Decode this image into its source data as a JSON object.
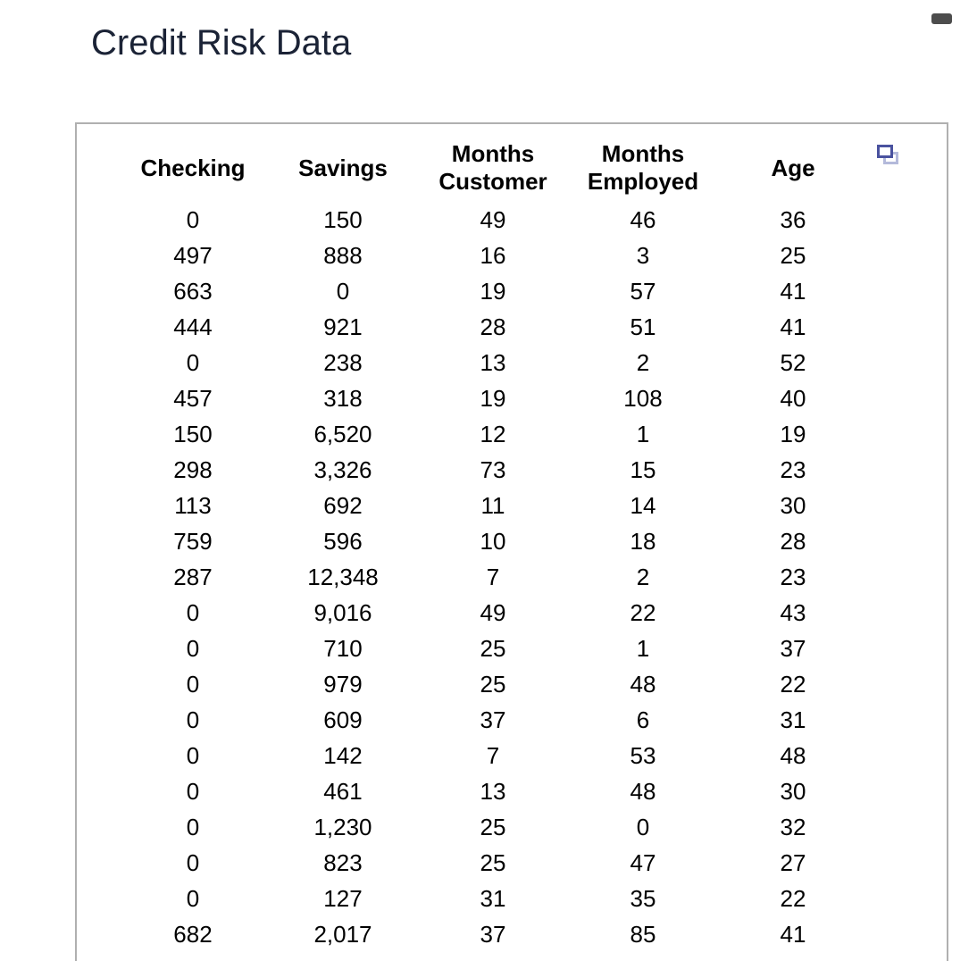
{
  "page": {
    "title": "Credit Risk Data"
  },
  "colors": {
    "title_color": "#1b2336",
    "text_color": "#000000",
    "border_color": "#b0b0b0",
    "bar_color": "#4d4d4d",
    "icon_dark": "#4a529f",
    "icon_light": "#b4badb"
  },
  "icons": {
    "popout": "duplicate-window-icon",
    "top_right": "dark-bar-icon"
  },
  "table": {
    "headers": [
      "Checking",
      "Savings",
      "Months\nCustomer",
      "Months\nEmployed",
      "Age"
    ],
    "rows": [
      [
        "0",
        "150",
        "49",
        "46",
        "36"
      ],
      [
        "497",
        "888",
        "16",
        "3",
        "25"
      ],
      [
        "663",
        "0",
        "19",
        "57",
        "41"
      ],
      [
        "444",
        "921",
        "28",
        "51",
        "41"
      ],
      [
        "0",
        "238",
        "13",
        "2",
        "52"
      ],
      [
        "457",
        "318",
        "19",
        "108",
        "40"
      ],
      [
        "150",
        "6,520",
        "12",
        "1",
        "19"
      ],
      [
        "298",
        "3,326",
        "73",
        "15",
        "23"
      ],
      [
        "113",
        "692",
        "11",
        "14",
        "30"
      ],
      [
        "759",
        "596",
        "10",
        "18",
        "28"
      ],
      [
        "287",
        "12,348",
        "7",
        "2",
        "23"
      ],
      [
        "0",
        "9,016",
        "49",
        "22",
        "43"
      ],
      [
        "0",
        "710",
        "25",
        "1",
        "37"
      ],
      [
        "0",
        "979",
        "25",
        "48",
        "22"
      ],
      [
        "0",
        "609",
        "37",
        "6",
        "31"
      ],
      [
        "0",
        "142",
        "7",
        "53",
        "48"
      ],
      [
        "0",
        "461",
        "13",
        "48",
        "30"
      ],
      [
        "0",
        "1,230",
        "25",
        "0",
        "32"
      ],
      [
        "0",
        "823",
        "25",
        "47",
        "27"
      ],
      [
        "0",
        "127",
        "31",
        "35",
        "22"
      ],
      [
        "682",
        "2,017",
        "37",
        "85",
        "41"
      ]
    ]
  }
}
